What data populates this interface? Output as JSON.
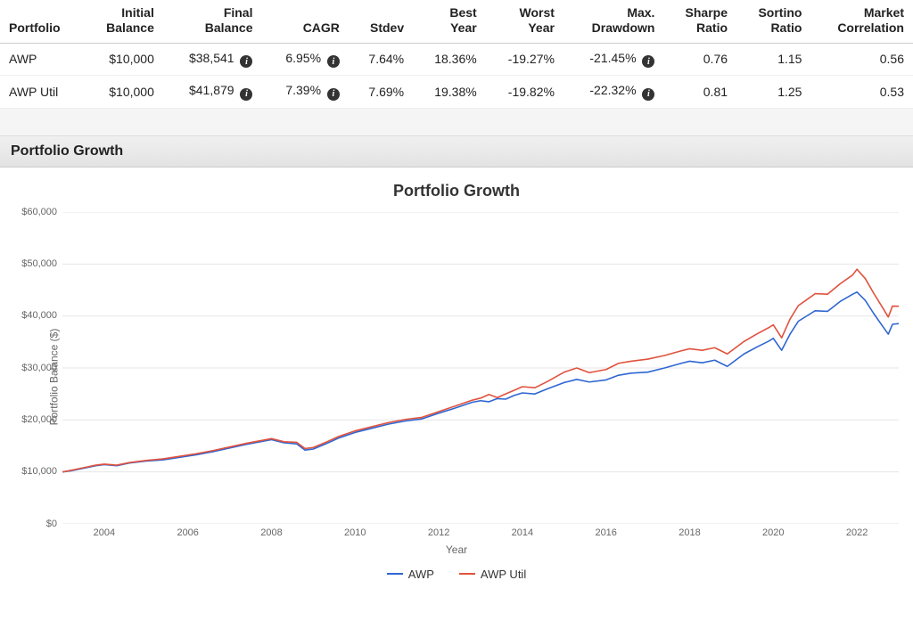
{
  "table": {
    "columns": [
      "Portfolio",
      "Initial\nBalance",
      "Final\nBalance",
      "CAGR",
      "Stdev",
      "Best\nYear",
      "Worst\nYear",
      "Max.\nDrawdown",
      "Sharpe\nRatio",
      "Sortino\nRatio",
      "Market\nCorrelation"
    ],
    "info_columns": [
      2,
      3,
      7
    ],
    "rows": [
      {
        "name": "AWP",
        "cells": [
          "AWP",
          "$10,000",
          "$38,541",
          "6.95%",
          "7.64%",
          "18.36%",
          "-19.27%",
          "-21.45%",
          "0.76",
          "1.15",
          "0.56"
        ]
      },
      {
        "name": "AWP Util",
        "cells": [
          "AWP Util",
          "$10,000",
          "$41,879",
          "7.39%",
          "7.69%",
          "19.38%",
          "-19.82%",
          "-22.32%",
          "0.81",
          "1.25",
          "0.53"
        ]
      }
    ]
  },
  "section_title": "Portfolio Growth",
  "chart": {
    "type": "line",
    "title": "Portfolio Growth",
    "xlabel": "Year",
    "ylabel": "Portfolio Balance ($)",
    "background_color": "#ffffff",
    "grid_color": "#e6e6e6",
    "axis_color": "#e6e6e6",
    "title_fontsize": 18,
    "label_fontsize": 12,
    "tick_fontsize": 11,
    "line_width": 1.6,
    "x_domain": [
      2003,
      2023
    ],
    "y_domain": [
      0,
      60000
    ],
    "xtick_step": 2,
    "xtick_start": 2004,
    "xtick_end": 2022,
    "ytick_step": 10000,
    "ytick_format_prefix": "$",
    "ytick_format_thousands": true,
    "legend_position": "bottom",
    "series": [
      {
        "label": "AWP",
        "color": "#2f66d1",
        "points": [
          [
            2003.0,
            10000
          ],
          [
            2003.2,
            10200
          ],
          [
            2003.5,
            10700
          ],
          [
            2003.8,
            11200
          ],
          [
            2004.0,
            11400
          ],
          [
            2004.3,
            11200
          ],
          [
            2004.6,
            11700
          ],
          [
            2005.0,
            12100
          ],
          [
            2005.4,
            12300
          ],
          [
            2005.8,
            12800
          ],
          [
            2006.2,
            13300
          ],
          [
            2006.6,
            13900
          ],
          [
            2007.0,
            14600
          ],
          [
            2007.4,
            15300
          ],
          [
            2007.8,
            15900
          ],
          [
            2008.0,
            16200
          ],
          [
            2008.3,
            15600
          ],
          [
            2008.6,
            15400
          ],
          [
            2008.8,
            14200
          ],
          [
            2009.0,
            14400
          ],
          [
            2009.3,
            15400
          ],
          [
            2009.6,
            16500
          ],
          [
            2010.0,
            17600
          ],
          [
            2010.4,
            18400
          ],
          [
            2010.8,
            19200
          ],
          [
            2011.2,
            19800
          ],
          [
            2011.6,
            20200
          ],
          [
            2012.0,
            21300
          ],
          [
            2012.4,
            22300
          ],
          [
            2012.8,
            23400
          ],
          [
            2013.0,
            23700
          ],
          [
            2013.2,
            23500
          ],
          [
            2013.4,
            24100
          ],
          [
            2013.6,
            24000
          ],
          [
            2013.8,
            24700
          ],
          [
            2014.0,
            25200
          ],
          [
            2014.3,
            25000
          ],
          [
            2014.6,
            26000
          ],
          [
            2015.0,
            27200
          ],
          [
            2015.3,
            27800
          ],
          [
            2015.6,
            27300
          ],
          [
            2016.0,
            27700
          ],
          [
            2016.3,
            28600
          ],
          [
            2016.6,
            29000
          ],
          [
            2017.0,
            29200
          ],
          [
            2017.4,
            30000
          ],
          [
            2017.8,
            30900
          ],
          [
            2018.0,
            31300
          ],
          [
            2018.3,
            31000
          ],
          [
            2018.6,
            31500
          ],
          [
            2018.9,
            30300
          ],
          [
            2019.0,
            30900
          ],
          [
            2019.3,
            32700
          ],
          [
            2019.6,
            34000
          ],
          [
            2019.9,
            35200
          ],
          [
            2020.0,
            35700
          ],
          [
            2020.2,
            33400
          ],
          [
            2020.4,
            36500
          ],
          [
            2020.6,
            39000
          ],
          [
            2020.9,
            40500
          ],
          [
            2021.0,
            41000
          ],
          [
            2021.3,
            40900
          ],
          [
            2021.6,
            42800
          ],
          [
            2021.9,
            44200
          ],
          [
            2022.0,
            44600
          ],
          [
            2022.2,
            43000
          ],
          [
            2022.4,
            40500
          ],
          [
            2022.6,
            38200
          ],
          [
            2022.75,
            36500
          ],
          [
            2022.85,
            38400
          ],
          [
            2023.0,
            38541
          ]
        ]
      },
      {
        "label": "AWP Util",
        "color": "#e0523e",
        "points": [
          [
            2003.0,
            10000
          ],
          [
            2003.2,
            10300
          ],
          [
            2003.5,
            10800
          ],
          [
            2003.8,
            11300
          ],
          [
            2004.0,
            11500
          ],
          [
            2004.3,
            11300
          ],
          [
            2004.6,
            11800
          ],
          [
            2005.0,
            12200
          ],
          [
            2005.4,
            12500
          ],
          [
            2005.8,
            13000
          ],
          [
            2006.2,
            13500
          ],
          [
            2006.6,
            14100
          ],
          [
            2007.0,
            14800
          ],
          [
            2007.4,
            15500
          ],
          [
            2007.8,
            16100
          ],
          [
            2008.0,
            16400
          ],
          [
            2008.3,
            15800
          ],
          [
            2008.6,
            15700
          ],
          [
            2008.8,
            14500
          ],
          [
            2009.0,
            14700
          ],
          [
            2009.3,
            15700
          ],
          [
            2009.6,
            16800
          ],
          [
            2010.0,
            17900
          ],
          [
            2010.4,
            18700
          ],
          [
            2010.8,
            19500
          ],
          [
            2011.2,
            20100
          ],
          [
            2011.6,
            20500
          ],
          [
            2012.0,
            21600
          ],
          [
            2012.4,
            22700
          ],
          [
            2012.8,
            23800
          ],
          [
            2013.0,
            24200
          ],
          [
            2013.2,
            24900
          ],
          [
            2013.4,
            24300
          ],
          [
            2013.6,
            25000
          ],
          [
            2013.8,
            25700
          ],
          [
            2014.0,
            26400
          ],
          [
            2014.3,
            26200
          ],
          [
            2014.6,
            27400
          ],
          [
            2015.0,
            29200
          ],
          [
            2015.3,
            30000
          ],
          [
            2015.6,
            29100
          ],
          [
            2016.0,
            29700
          ],
          [
            2016.3,
            30900
          ],
          [
            2016.6,
            31300
          ],
          [
            2017.0,
            31700
          ],
          [
            2017.4,
            32400
          ],
          [
            2017.8,
            33300
          ],
          [
            2018.0,
            33700
          ],
          [
            2018.3,
            33400
          ],
          [
            2018.6,
            33900
          ],
          [
            2018.9,
            32700
          ],
          [
            2019.0,
            33300
          ],
          [
            2019.3,
            35100
          ],
          [
            2019.6,
            36500
          ],
          [
            2019.9,
            37800
          ],
          [
            2020.0,
            38300
          ],
          [
            2020.2,
            35800
          ],
          [
            2020.4,
            39400
          ],
          [
            2020.6,
            42000
          ],
          [
            2020.9,
            43700
          ],
          [
            2021.0,
            44300
          ],
          [
            2021.3,
            44200
          ],
          [
            2021.6,
            46200
          ],
          [
            2021.9,
            47900
          ],
          [
            2022.0,
            49000
          ],
          [
            2022.2,
            47200
          ],
          [
            2022.4,
            44400
          ],
          [
            2022.6,
            41800
          ],
          [
            2022.75,
            39800
          ],
          [
            2022.85,
            41900
          ],
          [
            2023.0,
            41879
          ]
        ]
      }
    ]
  }
}
